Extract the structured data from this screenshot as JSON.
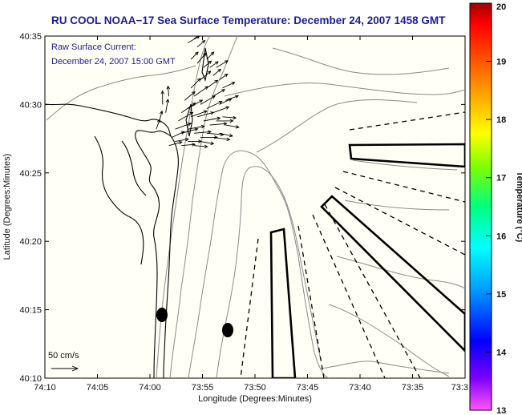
{
  "title": "RU COOL  NOAA−17  Sea Surface Temperature:  December 24, 2007 1458 GMT",
  "inset": {
    "line1": "Raw Surface Current:",
    "line2": "December 24, 2007 15:00 GMT"
  },
  "axes": {
    "xlabel": "Longitude (Degrees:Minutes)",
    "ylabel": "Latitude (Degrees:Minutes)",
    "x_ticks": [
      "74:10",
      "74:05",
      "74:00",
      "73:55",
      "73:50",
      "73:45",
      "73:40",
      "73:35",
      "73:3"
    ],
    "y_ticks": [
      "40:35",
      "40:30",
      "40:25",
      "40:20",
      "40:15",
      "40:10"
    ]
  },
  "scale": {
    "label": "50 cm/s"
  },
  "colorbar": {
    "label": "Temperature (°C)",
    "ticks": [
      "20",
      "19",
      "18",
      "17",
      "16",
      "15",
      "14",
      "13"
    ],
    "min": 13,
    "max": 20,
    "colors": [
      "#ff55ff",
      "#7a00ff",
      "#0000ff",
      "#00a0ff",
      "#00ffff",
      "#00ff80",
      "#80ff00",
      "#ffff00",
      "#ffa000",
      "#ff4000",
      "#ff0000",
      "#a00000"
    ]
  },
  "vectors": [
    [
      73.94,
      40.575,
      30,
      4
    ],
    [
      73.93,
      40.58,
      35,
      3
    ],
    [
      73.925,
      40.57,
      40,
      3
    ],
    [
      73.935,
      40.555,
      45,
      3
    ],
    [
      73.925,
      40.55,
      50,
      4
    ],
    [
      73.915,
      40.545,
      40,
      3
    ],
    [
      73.91,
      40.555,
      45,
      3
    ],
    [
      73.905,
      40.545,
      35,
      3
    ],
    [
      73.9,
      40.535,
      40,
      3
    ],
    [
      73.895,
      40.545,
      30,
      4
    ],
    [
      73.89,
      40.53,
      35,
      3
    ],
    [
      73.885,
      40.52,
      25,
      4
    ],
    [
      73.92,
      40.53,
      40,
      4
    ],
    [
      73.91,
      40.52,
      35,
      4
    ],
    [
      73.9,
      40.51,
      30,
      4
    ],
    [
      73.935,
      40.52,
      45,
      4
    ],
    [
      73.93,
      40.51,
      35,
      5
    ],
    [
      73.92,
      40.5,
      30,
      5
    ],
    [
      73.91,
      40.495,
      25,
      5
    ],
    [
      73.9,
      40.49,
      20,
      5
    ],
    [
      73.89,
      40.5,
      25,
      4
    ],
    [
      73.88,
      40.505,
      20,
      4
    ],
    [
      73.945,
      40.505,
      40,
      4
    ],
    [
      73.94,
      40.495,
      30,
      5
    ],
    [
      73.95,
      40.49,
      35,
      5
    ],
    [
      73.935,
      40.485,
      20,
      5
    ],
    [
      73.925,
      40.485,
      15,
      5
    ],
    [
      73.915,
      40.48,
      10,
      5
    ],
    [
      73.905,
      40.475,
      5,
      5
    ],
    [
      73.895,
      40.48,
      0,
      5
    ],
    [
      73.885,
      40.485,
      -5,
      4
    ],
    [
      73.88,
      40.475,
      -10,
      4
    ],
    [
      73.955,
      40.48,
      30,
      5
    ],
    [
      73.96,
      40.47,
      20,
      5
    ],
    [
      73.95,
      40.465,
      15,
      5
    ],
    [
      73.94,
      40.47,
      10,
      5
    ],
    [
      73.93,
      40.465,
      5,
      5
    ],
    [
      73.92,
      40.46,
      0,
      5
    ],
    [
      73.91,
      40.465,
      -5,
      5
    ],
    [
      73.9,
      40.46,
      -8,
      5
    ],
    [
      73.89,
      40.465,
      -12,
      4
    ],
    [
      73.965,
      40.46,
      25,
      4
    ],
    [
      73.97,
      40.45,
      15,
      4
    ],
    [
      73.96,
      40.455,
      10,
      4
    ],
    [
      73.95,
      40.45,
      5,
      4
    ],
    [
      73.94,
      40.455,
      0,
      4
    ],
    [
      73.93,
      40.45,
      -5,
      4
    ],
    [
      73.92,
      40.455,
      -10,
      4
    ],
    [
      73.975,
      40.49,
      80,
      4
    ],
    [
      73.98,
      40.5,
      90,
      4
    ],
    [
      73.985,
      40.48,
      75,
      3
    ],
    [
      73.97,
      40.51,
      95,
      3
    ],
    [
      73.99,
      40.47,
      70,
      3
    ],
    [
      73.93,
      40.59,
      20,
      3
    ],
    [
      73.94,
      40.6,
      15,
      2
    ],
    [
      73.945,
      40.61,
      90,
      3
    ],
    [
      73.95,
      40.59,
      80,
      3
    ]
  ]
}
